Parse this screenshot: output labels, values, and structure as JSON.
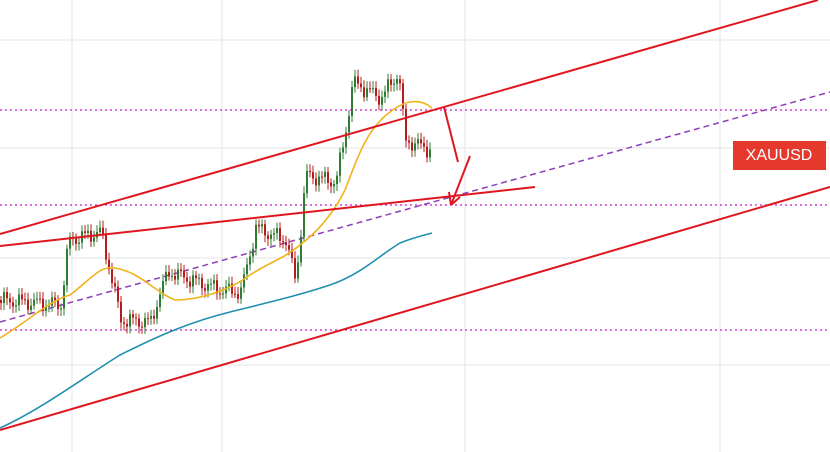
{
  "symbol_label": "XAUUSD"
}
